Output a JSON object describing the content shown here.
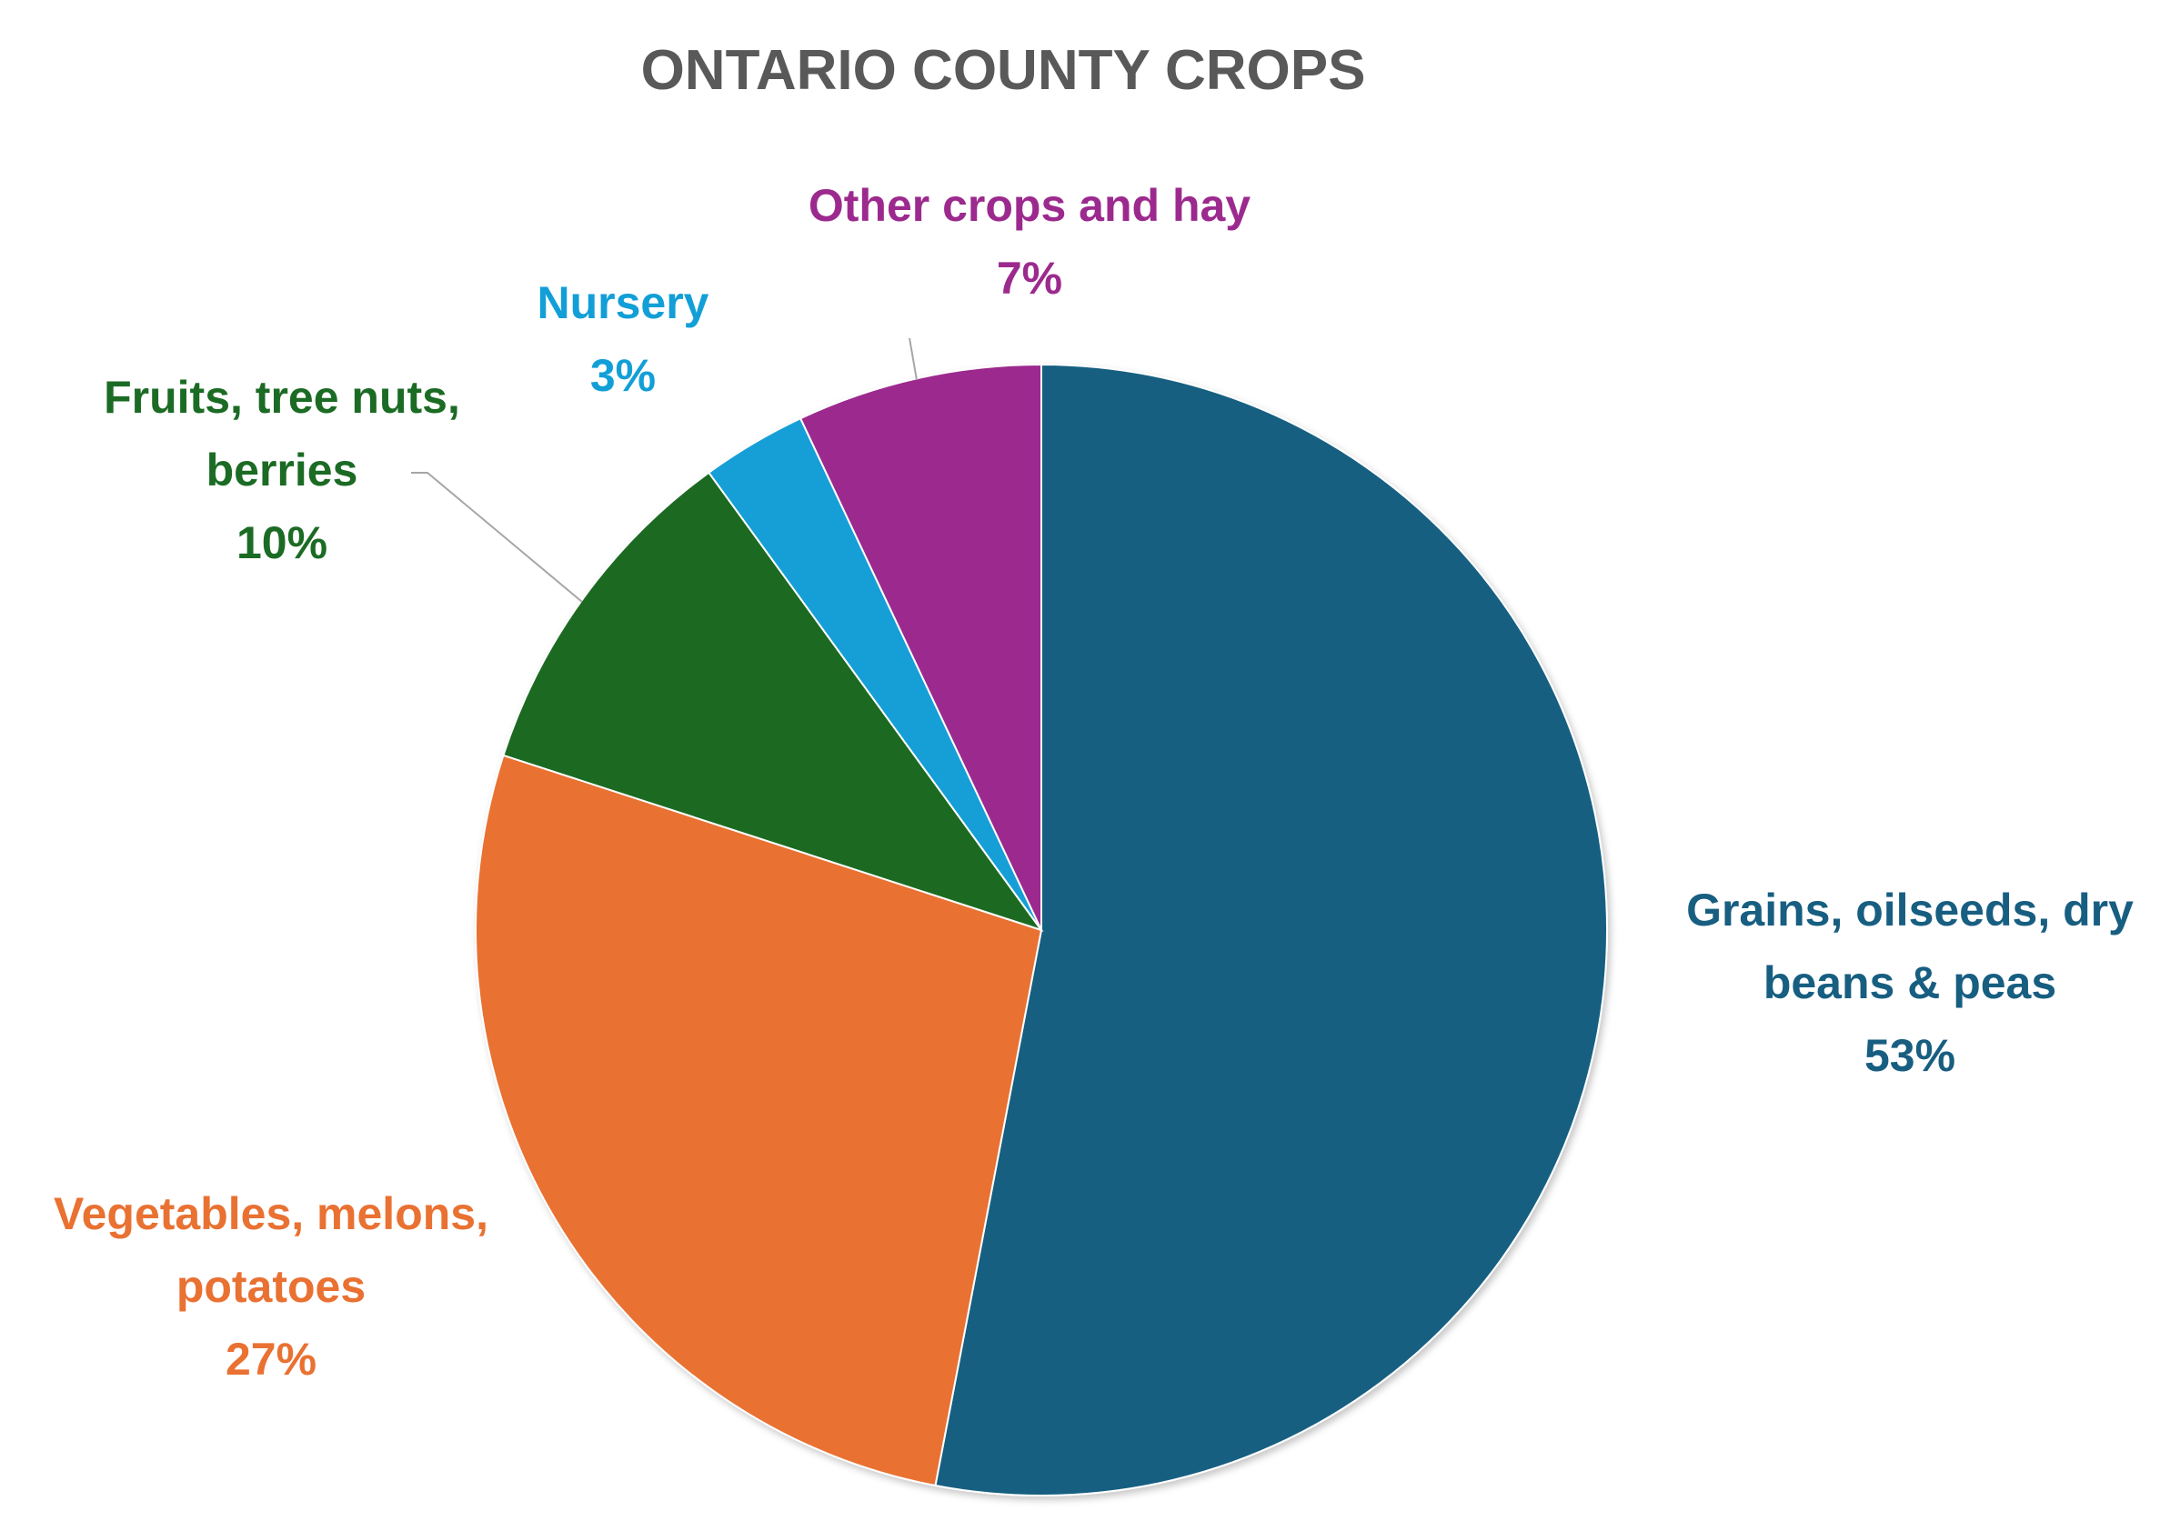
{
  "chart_data": {
    "type": "pie",
    "title": "ONTARIO COUNTY CROPS",
    "start_angle_deg": 0,
    "direction": "clockwise",
    "slices": [
      {
        "label_lines": [
          "Grains, oilseeds, dry",
          "beans & peas"
        ],
        "value": 53,
        "value_label": "53%",
        "color": "#175E81"
      },
      {
        "label_lines": [
          "Vegetables, melons,",
          "potatoes"
        ],
        "value": 27,
        "value_label": "27%",
        "color": "#E97132"
      },
      {
        "label_lines": [
          "Fruits, tree nuts,",
          "berries"
        ],
        "value": 10,
        "value_label": "10%",
        "color": "#1B6B24"
      },
      {
        "label_lines": [
          "Nursery"
        ],
        "value": 3,
        "value_label": "3%",
        "color": "#129FD7"
      },
      {
        "label_lines": [
          "Other crops and hay"
        ],
        "value": 7,
        "value_label": "7%",
        "color": "#9C2A8E"
      }
    ],
    "legend": "none",
    "leader_line_color": "#A6A6A6"
  }
}
